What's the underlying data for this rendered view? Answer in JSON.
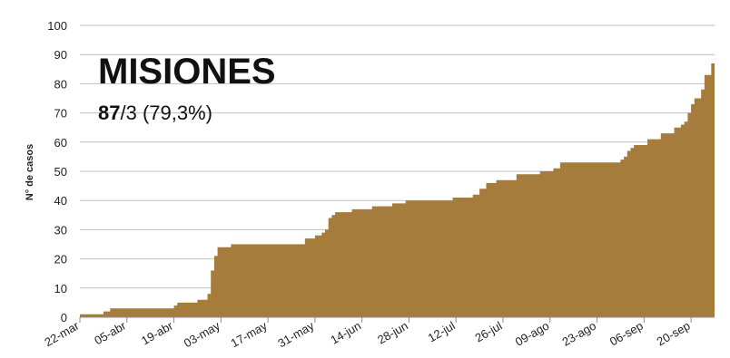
{
  "chart_data": {
    "type": "area",
    "title": "MISIONES",
    "subtitle_bold": "87",
    "subtitle_rest": "/3 (79,3%)",
    "xlabel": "",
    "ylabel": "N° de casos",
    "ylim": [
      0,
      100
    ],
    "yticks": [
      "0",
      "10",
      "20",
      "30",
      "40",
      "50",
      "60",
      "70",
      "80",
      "90",
      "100"
    ],
    "xticks": [
      "22-mar",
      "05-abr",
      "19-abr",
      "03-may",
      "17-may",
      "31-may",
      "14-jun",
      "28-jun",
      "12-jul",
      "26-jul",
      "09-ago",
      "23-ago",
      "06-sep",
      "20-sep"
    ],
    "grid": true,
    "fill_color": "#a67c3d",
    "series": [
      {
        "x": [
          "2020-03-22",
          "2020-03-29",
          "2020-03-31",
          "2020-04-03",
          "2020-04-19",
          "2020-04-20",
          "2020-04-26",
          "2020-04-29",
          "2020-04-30",
          "2020-05-01",
          "2020-05-02",
          "2020-05-03",
          "2020-05-06",
          "2020-05-26",
          "2020-05-28",
          "2020-05-31",
          "2020-06-01",
          "2020-06-02",
          "2020-06-03",
          "2020-06-04",
          "2020-06-05",
          "2020-06-06",
          "2020-06-07",
          "2020-06-11",
          "2020-06-17",
          "2020-06-23",
          "2020-06-27",
          "2020-07-11",
          "2020-07-15",
          "2020-07-17",
          "2020-07-19",
          "2020-07-21",
          "2020-07-24",
          "2020-07-30",
          "2020-08-06",
          "2020-08-10",
          "2020-08-12",
          "2020-08-30",
          "2020-08-31",
          "2020-09-01",
          "2020-09-02",
          "2020-09-03",
          "2020-09-07",
          "2020-09-11",
          "2020-09-15",
          "2020-09-16",
          "2020-09-17",
          "2020-09-18",
          "2020-09-19",
          "2020-09-20",
          "2020-09-21",
          "2020-09-23",
          "2020-09-24",
          "2020-09-26"
        ],
        "y": [
          1,
          2,
          3,
          3,
          4,
          5,
          6,
          8,
          16,
          21,
          24,
          24,
          25,
          25,
          27,
          28,
          28,
          29,
          30,
          34,
          35,
          36,
          36,
          37,
          38,
          39,
          40,
          41,
          41,
          42,
          44,
          46,
          47,
          49,
          50,
          51,
          53,
          54,
          55,
          57,
          58,
          59,
          61,
          63,
          65,
          65,
          66,
          67,
          70,
          73,
          75,
          78,
          83,
          87
        ]
      }
    ]
  }
}
